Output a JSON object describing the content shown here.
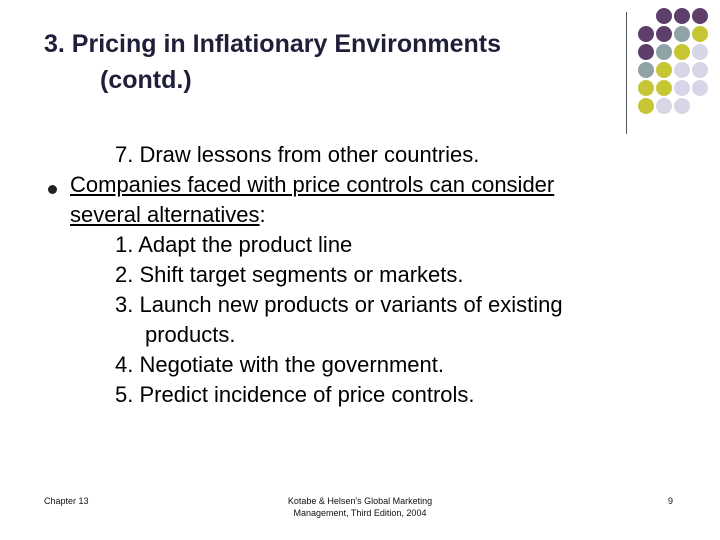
{
  "slide": {
    "title_line1": "3. Pricing in Inflationary Environments",
    "title_line2": "(contd.)"
  },
  "content": {
    "line_lesson": "7. Draw lessons from other countries.",
    "bullet_text_a": "Companies faced with price controls can consider",
    "bullet_text_b_underlined": "several alternatives",
    "bullet_text_b_rest": ":",
    "items": [
      "1. Adapt the product line",
      "2. Shift target segments or markets.",
      "3. Launch new products or variants of existing",
      "products.",
      "4. Negotiate with the government.",
      "5. Predict incidence of price controls."
    ]
  },
  "footer": {
    "left": "Chapter 13",
    "center_line1": "Kotabe & Helsen's Global Marketing",
    "center_line2": "Management, Third Edition, 2004",
    "page_number": "9"
  },
  "decor": {
    "colors": {
      "purple": "#5e3f6b",
      "gray": "#8fa3a6",
      "olive": "#c6c534",
      "lavender": "#d6d6e6"
    }
  }
}
